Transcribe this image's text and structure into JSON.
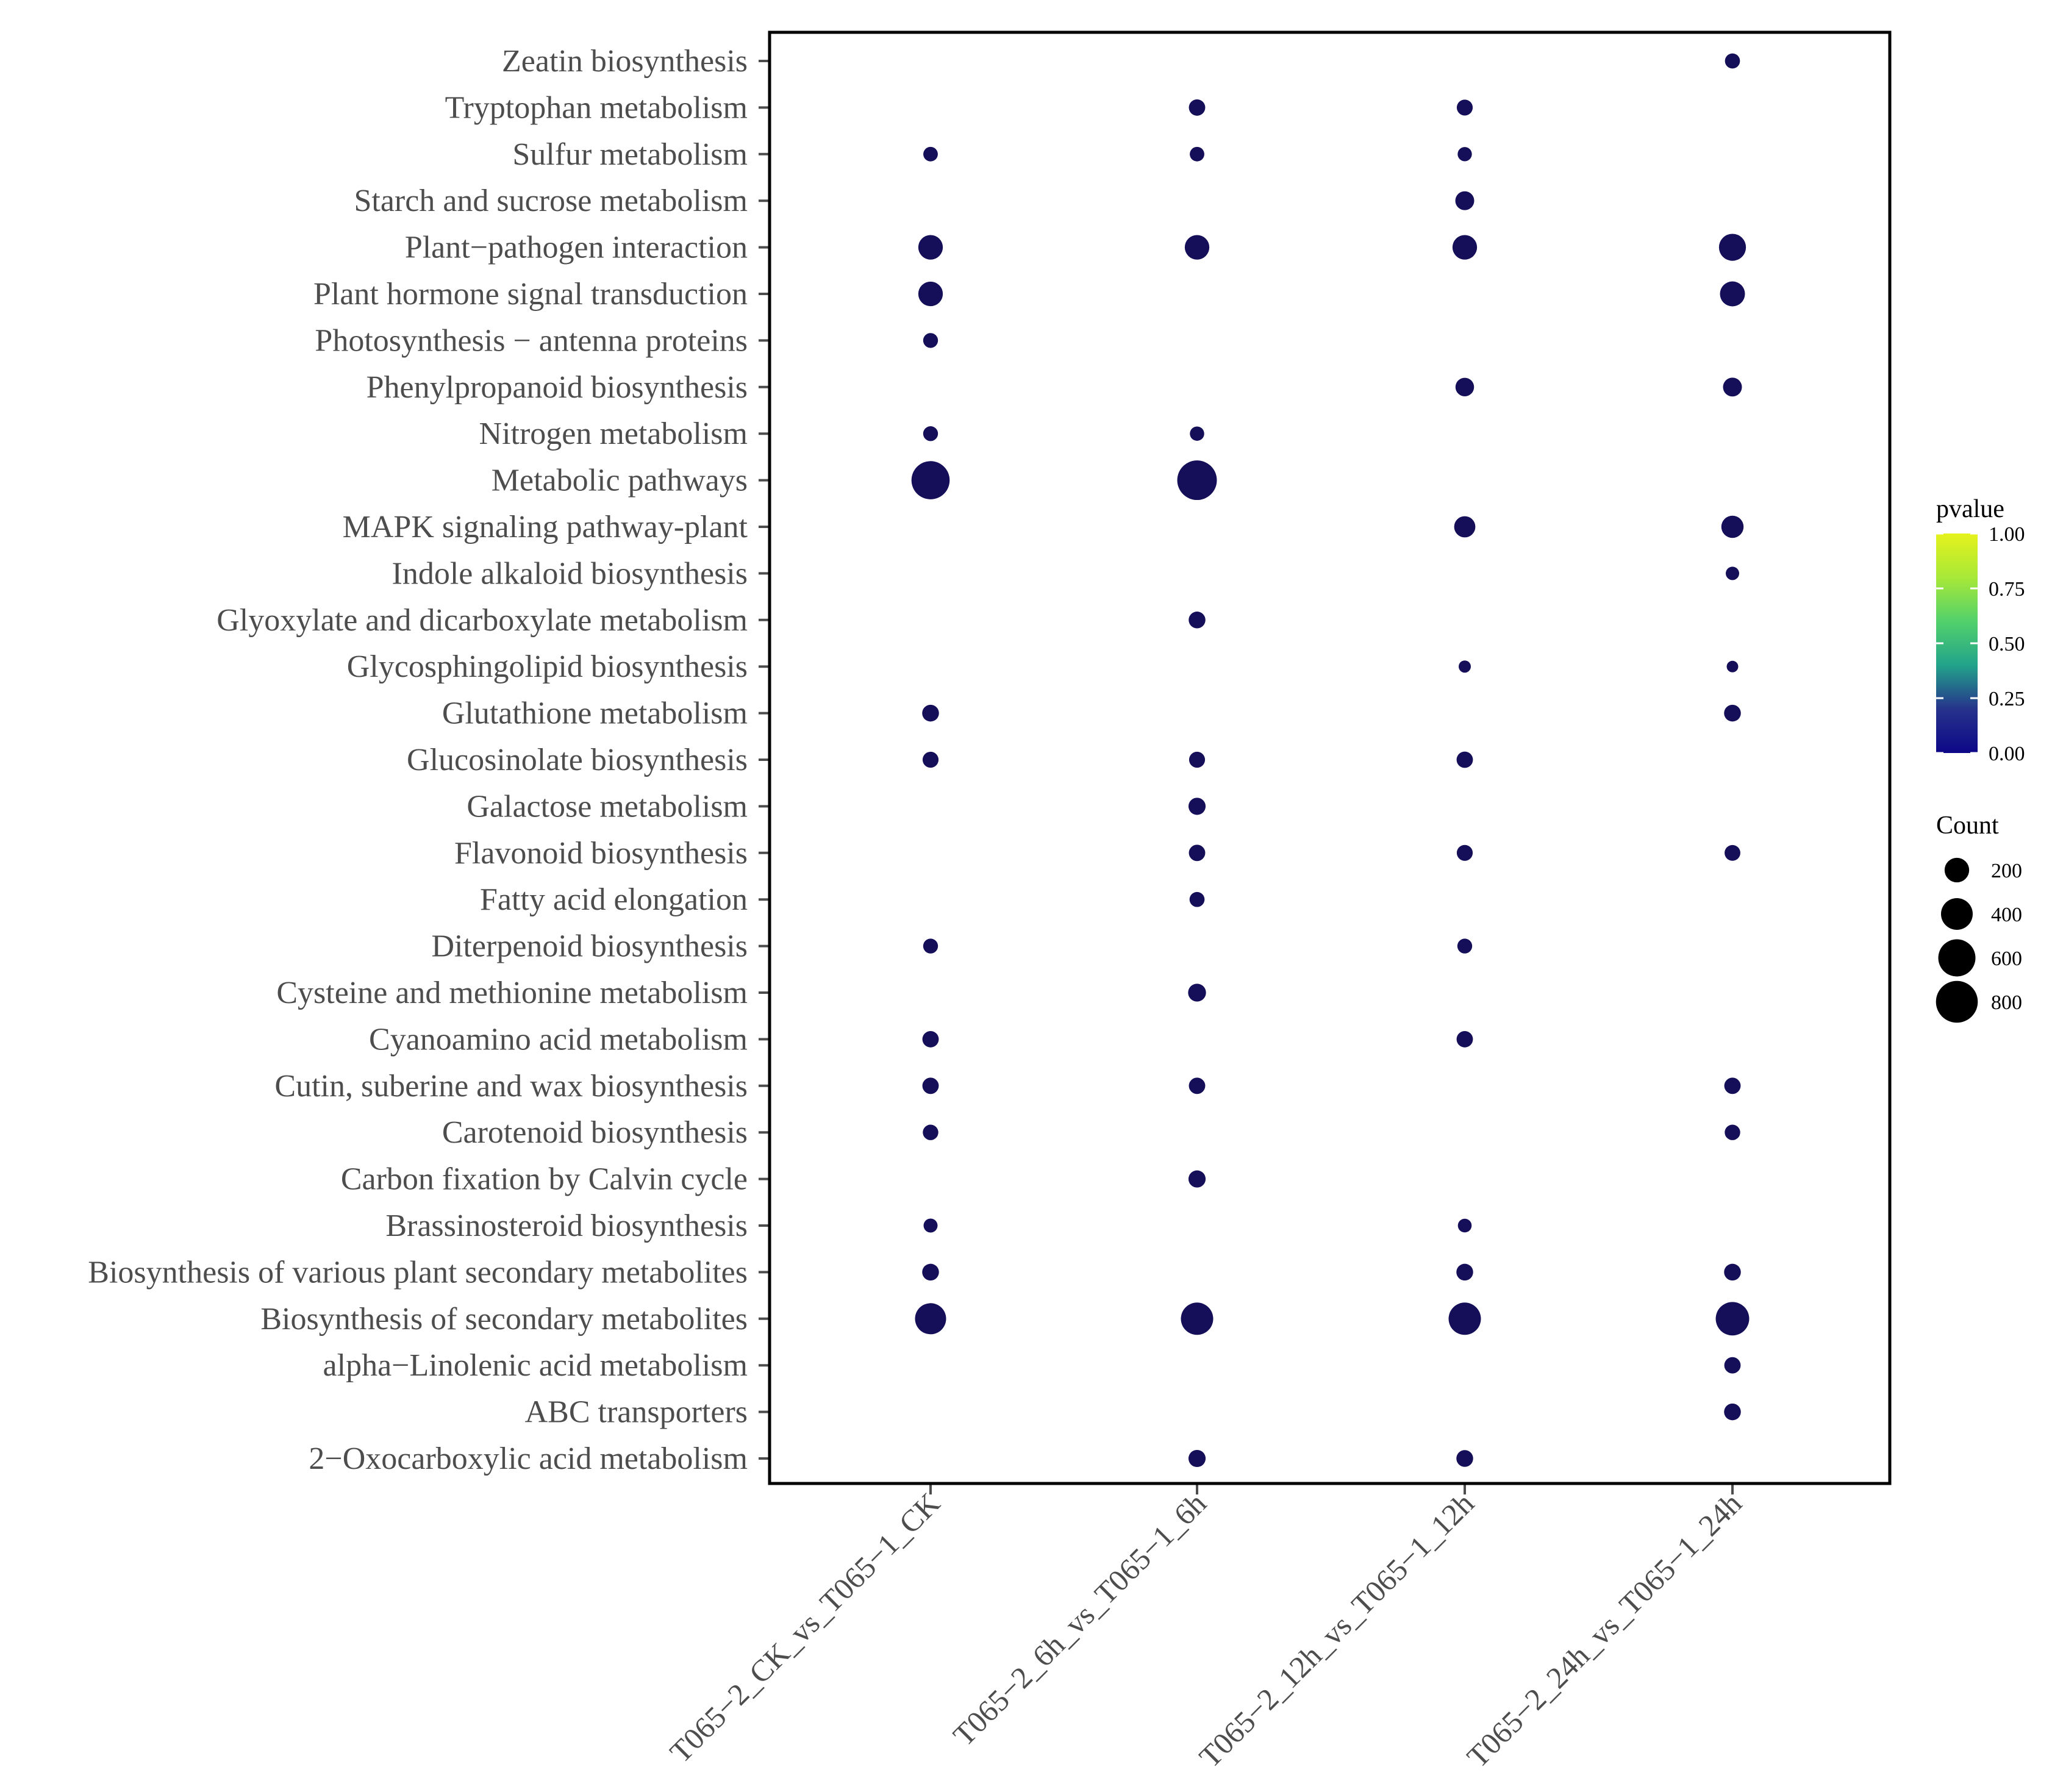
{
  "chart_data": {
    "type": "scatter",
    "subtype": "bubble",
    "title": "",
    "xlabel": "",
    "ylabel": "",
    "grid": false,
    "legend_position": "right",
    "comparisons": [
      "T065−2_CK_vs_T065−1_CK",
      "T065−2_6h_vs_T065−1_6h",
      "T065−2_12h_vs_T065−1_12h",
      "T065−2_24h_vs_T065−1_24h"
    ],
    "pathways": [
      "Zeatin biosynthesis",
      "Tryptophan metabolism",
      "Sulfur metabolism",
      "Starch and sucrose metabolism",
      "Plant−pathogen interaction",
      "Plant hormone signal transduction",
      "Photosynthesis − antenna proteins",
      "Phenylpropanoid biosynthesis",
      "Nitrogen metabolism",
      "Metabolic pathways",
      "MAPK signaling pathway-plant",
      "Indole alkaloid biosynthesis",
      "Glyoxylate and dicarboxylate metabolism",
      "Glycosphingolipid biosynthesis",
      "Glutathione metabolism",
      "Glucosinolate biosynthesis",
      "Galactose metabolism",
      "Flavonoid biosynthesis",
      "Fatty acid elongation",
      "Diterpenoid biosynthesis",
      "Cysteine and methionine metabolism",
      "Cyanoamino acid metabolism",
      "Cutin, suberine and wax biosynthesis",
      "Carotenoid biosynthesis",
      "Carbon fixation by Calvin cycle",
      "Brassinosteroid biosynthesis",
      "Biosynthesis of various plant secondary metabolites",
      "Biosynthesis of secondary metabolites",
      "alpha−Linolenic acid metabolism",
      "ABC transporters",
      "2−Oxocarboxylic acid metabolism"
    ],
    "points": [
      {
        "pathway": "Zeatin biosynthesis",
        "comparison": 3,
        "count": 40,
        "pvalue": 0.01
      },
      {
        "pathway": "Tryptophan metabolism",
        "comparison": 1,
        "count": 55,
        "pvalue": 0.01
      },
      {
        "pathway": "Tryptophan metabolism",
        "comparison": 2,
        "count": 50,
        "pvalue": 0.01
      },
      {
        "pathway": "Sulfur metabolism",
        "comparison": 0,
        "count": 35,
        "pvalue": 0.01
      },
      {
        "pathway": "Sulfur metabolism",
        "comparison": 1,
        "count": 35,
        "pvalue": 0.01
      },
      {
        "pathway": "Sulfur metabolism",
        "comparison": 2,
        "count": 32,
        "pvalue": 0.01
      },
      {
        "pathway": "Starch and sucrose metabolism",
        "comparison": 2,
        "count": 90,
        "pvalue": 0.01
      },
      {
        "pathway": "Plant−pathogen interaction",
        "comparison": 0,
        "count": 200,
        "pvalue": 0.01
      },
      {
        "pathway": "Plant−pathogen interaction",
        "comparison": 1,
        "count": 200,
        "pvalue": 0.01
      },
      {
        "pathway": "Plant−pathogen interaction",
        "comparison": 2,
        "count": 200,
        "pvalue": 0.01
      },
      {
        "pathway": "Plant−pathogen interaction",
        "comparison": 3,
        "count": 260,
        "pvalue": 0.01
      },
      {
        "pathway": "Plant hormone signal transduction",
        "comparison": 0,
        "count": 200,
        "pvalue": 0.01
      },
      {
        "pathway": "Plant hormone signal transduction",
        "comparison": 3,
        "count": 210,
        "pvalue": 0.01
      },
      {
        "pathway": "Photosynthesis − antenna proteins",
        "comparison": 0,
        "count": 38,
        "pvalue": 0.01
      },
      {
        "pathway": "Phenylpropanoid biosynthesis",
        "comparison": 2,
        "count": 85,
        "pvalue": 0.01
      },
      {
        "pathway": "Phenylpropanoid biosynthesis",
        "comparison": 3,
        "count": 90,
        "pvalue": 0.01
      },
      {
        "pathway": "Nitrogen metabolism",
        "comparison": 0,
        "count": 38,
        "pvalue": 0.01
      },
      {
        "pathway": "Nitrogen metabolism",
        "comparison": 1,
        "count": 33,
        "pvalue": 0.01
      },
      {
        "pathway": "Metabolic pathways",
        "comparison": 0,
        "count": 640,
        "pvalue": 0.01
      },
      {
        "pathway": "Metabolic pathways",
        "comparison": 1,
        "count": 700,
        "pvalue": 0.01
      },
      {
        "pathway": "MAPK signaling pathway-plant",
        "comparison": 2,
        "count": 130,
        "pvalue": 0.01
      },
      {
        "pathway": "MAPK signaling pathway-plant",
        "comparison": 3,
        "count": 150,
        "pvalue": 0.01
      },
      {
        "pathway": "Indole alkaloid biosynthesis",
        "comparison": 3,
        "count": 25,
        "pvalue": 0.01
      },
      {
        "pathway": "Glyoxylate and dicarboxylate metabolism",
        "comparison": 1,
        "count": 60,
        "pvalue": 0.01
      },
      {
        "pathway": "Glycosphingolipid biosynthesis",
        "comparison": 2,
        "count": 16,
        "pvalue": 0.01
      },
      {
        "pathway": "Glycosphingolipid biosynthesis",
        "comparison": 3,
        "count": 12,
        "pvalue": 0.01
      },
      {
        "pathway": "Glutathione metabolism",
        "comparison": 0,
        "count": 60,
        "pvalue": 0.01
      },
      {
        "pathway": "Glutathione metabolism",
        "comparison": 3,
        "count": 60,
        "pvalue": 0.01
      },
      {
        "pathway": "Glucosinolate biosynthesis",
        "comparison": 0,
        "count": 50,
        "pvalue": 0.01
      },
      {
        "pathway": "Glucosinolate biosynthesis",
        "comparison": 1,
        "count": 50,
        "pvalue": 0.01
      },
      {
        "pathway": "Glucosinolate biosynthesis",
        "comparison": 2,
        "count": 55,
        "pvalue": 0.01
      },
      {
        "pathway": "Galactose metabolism",
        "comparison": 1,
        "count": 65,
        "pvalue": 0.01
      },
      {
        "pathway": "Flavonoid biosynthesis",
        "comparison": 1,
        "count": 55,
        "pvalue": 0.01
      },
      {
        "pathway": "Flavonoid biosynthesis",
        "comparison": 2,
        "count": 50,
        "pvalue": 0.01
      },
      {
        "pathway": "Flavonoid biosynthesis",
        "comparison": 3,
        "count": 48,
        "pvalue": 0.01
      },
      {
        "pathway": "Fatty acid elongation",
        "comparison": 1,
        "count": 40,
        "pvalue": 0.01
      },
      {
        "pathway": "Diterpenoid biosynthesis",
        "comparison": 0,
        "count": 38,
        "pvalue": 0.01
      },
      {
        "pathway": "Diterpenoid biosynthesis",
        "comparison": 2,
        "count": 38,
        "pvalue": 0.01
      },
      {
        "pathway": "Cysteine and methionine metabolism",
        "comparison": 1,
        "count": 75,
        "pvalue": 0.01
      },
      {
        "pathway": "Cyanoamino acid metabolism",
        "comparison": 0,
        "count": 55,
        "pvalue": 0.01
      },
      {
        "pathway": "Cyanoamino acid metabolism",
        "comparison": 2,
        "count": 55,
        "pvalue": 0.01
      },
      {
        "pathway": "Cutin, suberine and wax biosynthesis",
        "comparison": 0,
        "count": 55,
        "pvalue": 0.01
      },
      {
        "pathway": "Cutin, suberine and wax biosynthesis",
        "comparison": 1,
        "count": 55,
        "pvalue": 0.01
      },
      {
        "pathway": "Cutin, suberine and wax biosynthesis",
        "comparison": 3,
        "count": 55,
        "pvalue": 0.01
      },
      {
        "pathway": "Carotenoid biosynthesis",
        "comparison": 0,
        "count": 45,
        "pvalue": 0.01
      },
      {
        "pathway": "Carotenoid biosynthesis",
        "comparison": 3,
        "count": 45,
        "pvalue": 0.01
      },
      {
        "pathway": "Carbon fixation by Calvin cycle",
        "comparison": 1,
        "count": 65,
        "pvalue": 0.01
      },
      {
        "pathway": "Brassinosteroid biosynthesis",
        "comparison": 0,
        "count": 30,
        "pvalue": 0.01
      },
      {
        "pathway": "Brassinosteroid biosynthesis",
        "comparison": 2,
        "count": 28,
        "pvalue": 0.01
      },
      {
        "pathway": "Biosynthesis of various plant secondary metabolites",
        "comparison": 0,
        "count": 60,
        "pvalue": 0.01
      },
      {
        "pathway": "Biosynthesis of various plant secondary metabolites",
        "comparison": 2,
        "count": 60,
        "pvalue": 0.01
      },
      {
        "pathway": "Biosynthesis of various plant secondary metabolites",
        "comparison": 3,
        "count": 60,
        "pvalue": 0.01
      },
      {
        "pathway": "Biosynthesis of secondary metabolites",
        "comparison": 0,
        "count": 380,
        "pvalue": 0.01
      },
      {
        "pathway": "Biosynthesis of secondary metabolites",
        "comparison": 1,
        "count": 420,
        "pvalue": 0.01
      },
      {
        "pathway": "Biosynthesis of secondary metabolites",
        "comparison": 2,
        "count": 420,
        "pvalue": 0.01
      },
      {
        "pathway": "Biosynthesis of secondary metabolites",
        "comparison": 3,
        "count": 460,
        "pvalue": 0.01
      },
      {
        "pathway": "alpha−Linolenic acid metabolism",
        "comparison": 3,
        "count": 55,
        "pvalue": 0.01
      },
      {
        "pathway": "ABC transporters",
        "comparison": 3,
        "count": 60,
        "pvalue": 0.01
      },
      {
        "pathway": "2−Oxocarboxylic acid metabolism",
        "comparison": 1,
        "count": 65,
        "pvalue": 0.01
      },
      {
        "pathway": "2−Oxocarboxylic acid metabolism",
        "comparison": 2,
        "count": 60,
        "pvalue": 0.01
      }
    ],
    "color_legend": {
      "title": "pvalue",
      "range": [
        0,
        1
      ],
      "ticks": [
        {
          "value": 1.0,
          "label": "1.00"
        },
        {
          "value": 0.75,
          "label": "0.75"
        },
        {
          "value": 0.5,
          "label": "0.50"
        },
        {
          "value": 0.25,
          "label": "0.25"
        },
        {
          "value": 0.0,
          "label": "0.00"
        }
      ],
      "gradient_stops": [
        "#0d0887",
        "#26338c",
        "#22a38a",
        "#52d16b",
        "#a8e838",
        "#e5f21c"
      ],
      "low_color": "#140f58",
      "high_color": "#e1ef23"
    },
    "size_legend": {
      "title": "Count",
      "entries": [
        {
          "value": 200,
          "label": "200"
        },
        {
          "value": 400,
          "label": "400"
        },
        {
          "value": 600,
          "label": "600"
        },
        {
          "value": 800,
          "label": "800"
        }
      ]
    },
    "point_color": "#140f58",
    "panel_border_color": "#000000",
    "tick_text_color": "#4d4d4d"
  }
}
